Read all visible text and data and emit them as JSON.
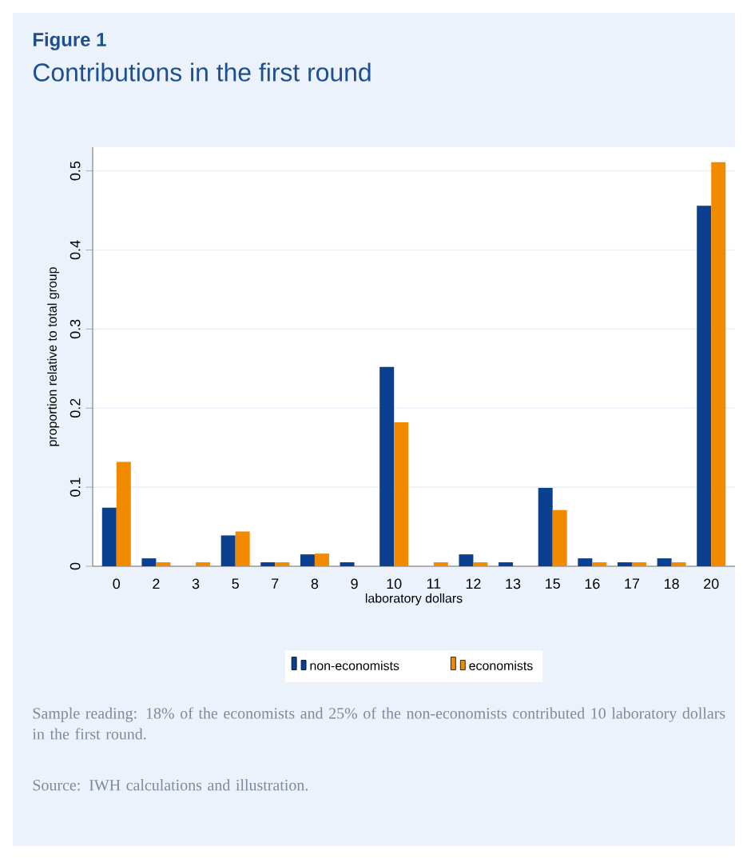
{
  "chart_data": {
    "type": "bar",
    "title": "Contributions in the first round",
    "annotations": [
      "Figure 1",
      "Sample reading: 18% of the economists and 25% of the non-economists contributed 10 laboratory dollars in the first round.",
      "Source: IWH calculations and illustration."
    ],
    "xlabel": "laboratory dollars",
    "ylabel": "proportion relative to total group",
    "categories": [
      "0",
      "2",
      "3",
      "5",
      "7",
      "8",
      "9",
      "10",
      "11",
      "12",
      "13",
      "15",
      "16",
      "17",
      "18",
      "20"
    ],
    "series": [
      {
        "name": "non-economists",
        "color": "#0b3f8f",
        "values": [
          0.074,
          0.01,
          0,
          0.039,
          0.005,
          0.015,
          0.005,
          0.252,
          0,
          0.015,
          0.005,
          0.099,
          0.01,
          0.005,
          0.01,
          0.456
        ]
      },
      {
        "name": "economists",
        "color": "#f28a00",
        "values": [
          0.132,
          0.005,
          0.005,
          0.044,
          0.005,
          0.016,
          0,
          0.182,
          0.005,
          0.005,
          0,
          0.071,
          0.005,
          0.005,
          0.005,
          0.511
        ]
      }
    ],
    "ylim": [
      0,
      0.53
    ],
    "yticks": [
      0,
      0.1,
      0.2,
      0.3,
      0.4,
      0.5
    ],
    "grid": "y",
    "legend": "bottom"
  }
}
